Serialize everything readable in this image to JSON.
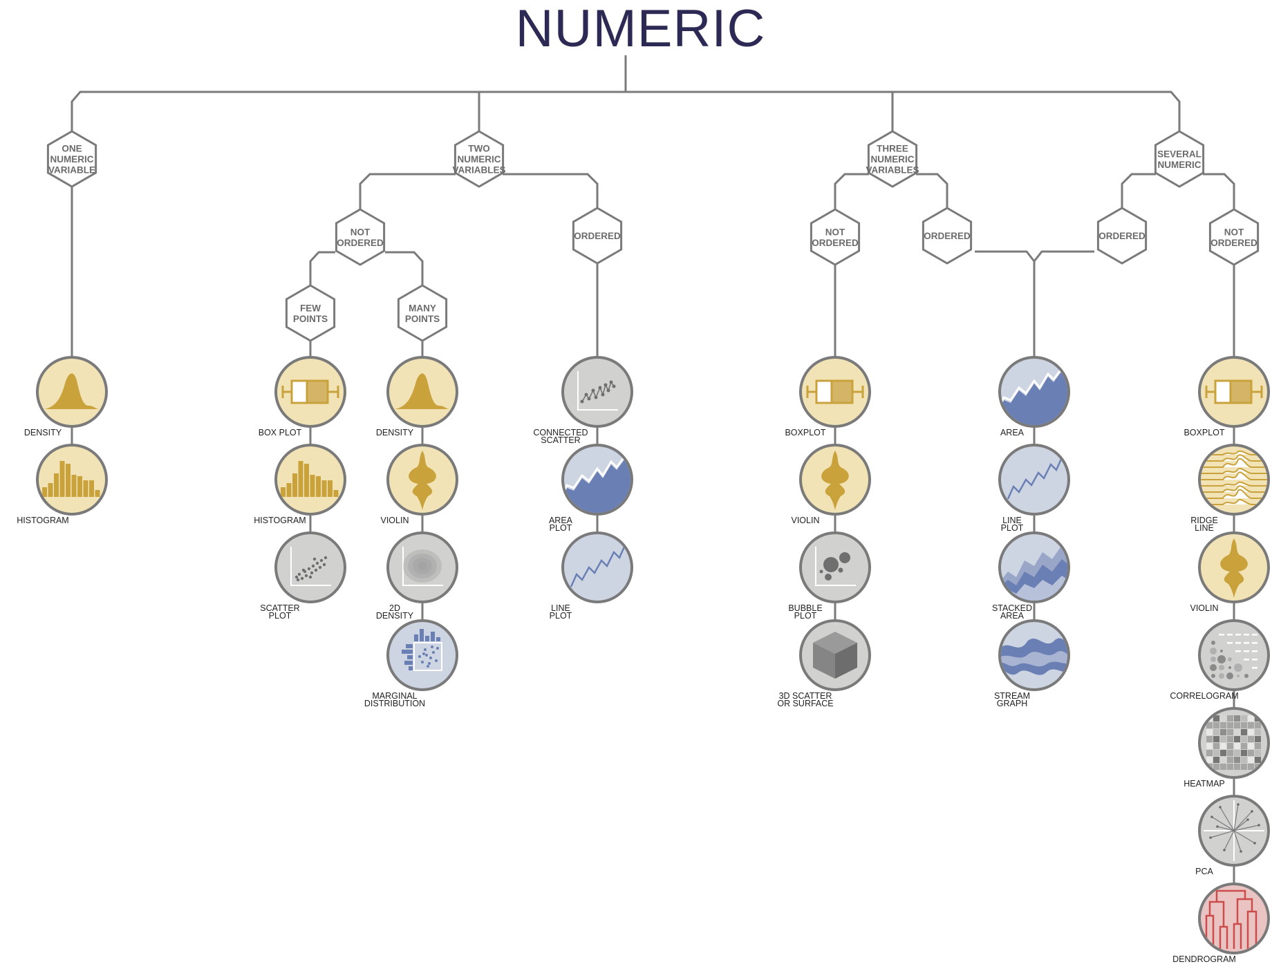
{
  "title": "NUMERIC",
  "categories": [
    {
      "id": "one",
      "lines": [
        "ONE",
        "NUMERIC",
        "VARIABLE"
      ]
    },
    {
      "id": "two",
      "lines": [
        "TWO",
        "NUMERIC",
        "VARIABLES"
      ]
    },
    {
      "id": "three",
      "lines": [
        "THREE",
        "NUMERIC",
        "VARIABLES"
      ]
    },
    {
      "id": "several",
      "lines": [
        "SEVERAL",
        "NUMERIC"
      ]
    }
  ],
  "subcategories": [
    {
      "id": "two-not-ordered",
      "lines": [
        "NOT",
        "ORDERED"
      ]
    },
    {
      "id": "two-ordered",
      "lines": [
        "ORDERED"
      ]
    },
    {
      "id": "few-points",
      "lines": [
        "FEW",
        "POINTS"
      ]
    },
    {
      "id": "many-points",
      "lines": [
        "MANY",
        "POINTS"
      ]
    },
    {
      "id": "three-not-ordered",
      "lines": [
        "NOT",
        "ORDERED"
      ]
    },
    {
      "id": "three-ordered",
      "lines": [
        "ORDERED"
      ]
    },
    {
      "id": "several-ordered",
      "lines": [
        "ORDERED"
      ]
    },
    {
      "id": "several-not-ordered",
      "lines": [
        "NOT",
        "ORDERED"
      ]
    }
  ],
  "columns": [
    {
      "id": "col-one",
      "charts": [
        {
          "label": [
            "DENSITY"
          ],
          "icon": "density-icon",
          "theme": "yellow"
        },
        {
          "label": [
            "HISTOGRAM"
          ],
          "icon": "histogram-icon",
          "theme": "yellow"
        }
      ]
    },
    {
      "id": "col-few",
      "charts": [
        {
          "label": [
            "BOX PLOT"
          ],
          "icon": "boxplot-icon",
          "theme": "yellow"
        },
        {
          "label": [
            "HISTOGRAM"
          ],
          "icon": "histogram-icon",
          "theme": "yellow"
        },
        {
          "label": [
            "SCATTER",
            "PLOT"
          ],
          "icon": "scatter-icon",
          "theme": "grey"
        }
      ]
    },
    {
      "id": "col-many",
      "charts": [
        {
          "label": [
            "DENSITY"
          ],
          "icon": "density-icon",
          "theme": "yellow"
        },
        {
          "label": [
            "VIOLIN"
          ],
          "icon": "violin-icon",
          "theme": "yellow"
        },
        {
          "label": [
            "2D",
            "DENSITY"
          ],
          "icon": "density2d-icon",
          "theme": "grey"
        },
        {
          "label": [
            "MARGINAL",
            "DISTRIBUTION"
          ],
          "icon": "marginal-icon",
          "theme": "blue"
        }
      ]
    },
    {
      "id": "col-two-ordered",
      "charts": [
        {
          "label": [
            "CONNECTED",
            "SCATTER"
          ],
          "icon": "connected-scatter-icon",
          "theme": "grey"
        },
        {
          "label": [
            "AREA",
            "PLOT"
          ],
          "icon": "area-icon",
          "theme": "blue"
        },
        {
          "label": [
            "LINE",
            "PLOT"
          ],
          "icon": "line-icon",
          "theme": "blue"
        }
      ]
    },
    {
      "id": "col-three-not-ordered",
      "charts": [
        {
          "label": [
            "BOXPLOT"
          ],
          "icon": "boxplot-icon",
          "theme": "yellow"
        },
        {
          "label": [
            "VIOLIN"
          ],
          "icon": "violin-icon",
          "theme": "yellow"
        },
        {
          "label": [
            "BUBBLE",
            "PLOT"
          ],
          "icon": "bubble-icon",
          "theme": "grey"
        },
        {
          "label": [
            "3D SCATTER",
            "OR SURFACE"
          ],
          "icon": "cube-icon",
          "theme": "grey"
        }
      ]
    },
    {
      "id": "col-ordered-shared",
      "charts": [
        {
          "label": [
            "AREA"
          ],
          "icon": "area-icon",
          "theme": "blue"
        },
        {
          "label": [
            "LINE",
            "PLOT"
          ],
          "icon": "line-icon",
          "theme": "blue"
        },
        {
          "label": [
            "STACKED",
            "AREA"
          ],
          "icon": "stacked-area-icon",
          "theme": "blue"
        },
        {
          "label": [
            "STREAM",
            "GRAPH"
          ],
          "icon": "streamgraph-icon",
          "theme": "blue"
        }
      ]
    },
    {
      "id": "col-several-not-ordered",
      "charts": [
        {
          "label": [
            "BOXPLOT"
          ],
          "icon": "boxplot-icon",
          "theme": "yellow"
        },
        {
          "label": [
            "RIDGE",
            "LINE"
          ],
          "icon": "ridgeline-icon",
          "theme": "yellow"
        },
        {
          "label": [
            "VIOLIN"
          ],
          "icon": "violin-icon",
          "theme": "yellow"
        },
        {
          "label": [
            "CORRELOGRAM"
          ],
          "icon": "correlogram-icon",
          "theme": "grey"
        },
        {
          "label": [
            "HEATMAP"
          ],
          "icon": "heatmap-icon",
          "theme": "grey"
        },
        {
          "label": [
            "PCA"
          ],
          "icon": "pca-icon",
          "theme": "grey"
        },
        {
          "label": [
            "DENDROGRAM"
          ],
          "icon": "dendrogram-icon",
          "theme": "red"
        }
      ]
    }
  ],
  "colors": {
    "title": "#2c2a55",
    "line": "#7a7a7a",
    "yellow_bg": "#f1e3b6",
    "yellow_fg": "#c9a23c",
    "grey_bg": "#d1d1cf",
    "grey_fg": "#6f6f6f",
    "blue_bg": "#cdd4e2",
    "blue_fg": "#6a7fb3",
    "red_bg": "#eac4c2",
    "red_fg": "#cc4b4b"
  }
}
